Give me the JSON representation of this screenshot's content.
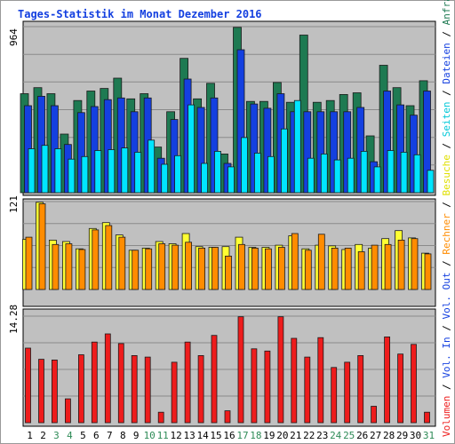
{
  "chart_data": [
    {
      "type": "bar",
      "panel": "top",
      "title": "Tages-Statistik im Monat Dezember 2016",
      "y_max_label": "964",
      "ylim": [
        0,
        964
      ],
      "categories": [
        "1",
        "2",
        "3",
        "4",
        "5",
        "6",
        "7",
        "8",
        "9",
        "10",
        "11",
        "12",
        "13",
        "14",
        "15",
        "16",
        "17",
        "18",
        "19",
        "20",
        "21",
        "22",
        "23",
        "24",
        "25",
        "26",
        "27",
        "28",
        "29",
        "30",
        "31"
      ],
      "category_colors": {
        "weekday": "#000000",
        "weekend": "#2e8b57"
      },
      "weekend_days": [
        "3",
        "4",
        "10",
        "11",
        "17",
        "18",
        "24",
        "25",
        "31"
      ],
      "series": [
        {
          "name": "Anfragen",
          "color": "#1e7a52",
          "values": [
            575,
            610,
            575,
            340,
            535,
            590,
            605,
            665,
            545,
            575,
            265,
            470,
            780,
            545,
            635,
            225,
            960,
            530,
            530,
            640,
            525,
            915,
            525,
            535,
            570,
            580,
            330,
            740,
            610,
            505,
            650
          ]
        },
        {
          "name": "Dateien",
          "color": "#1440e0",
          "values": [
            505,
            560,
            505,
            280,
            465,
            500,
            540,
            550,
            470,
            550,
            200,
            425,
            660,
            495,
            550,
            170,
            830,
            515,
            490,
            575,
            470,
            470,
            470,
            470,
            470,
            495,
            180,
            590,
            510,
            450,
            590
          ]
        },
        {
          "name": "Seiten",
          "color": "#00e5ff",
          "values": [
            255,
            275,
            255,
            195,
            210,
            245,
            250,
            260,
            235,
            305,
            165,
            215,
            510,
            170,
            240,
            150,
            320,
            230,
            210,
            370,
            535,
            200,
            225,
            190,
            200,
            240,
            150,
            245,
            235,
            220,
            130
          ]
        }
      ]
    },
    {
      "type": "bar",
      "panel": "middle",
      "y_max_label": "121",
      "ylim": [
        0,
        121
      ],
      "series": [
        {
          "name": "Besuche",
          "color": "#ffff33",
          "values": [
            69,
            120,
            68,
            66,
            56,
            84,
            92,
            75,
            54,
            57,
            66,
            63,
            77,
            59,
            58,
            59,
            72,
            58,
            58,
            61,
            74,
            56,
            61,
            60,
            55,
            62,
            57,
            70,
            81,
            71,
            50
          ]
        },
        {
          "name": "Rechner",
          "color": "#ff8c00",
          "values": [
            72,
            118,
            62,
            63,
            55,
            82,
            88,
            72,
            54,
            56,
            63,
            61,
            65,
            57,
            58,
            46,
            62,
            57,
            56,
            58,
            77,
            54,
            76,
            57,
            57,
            52,
            61,
            62,
            68,
            70,
            49
          ]
        }
      ]
    },
    {
      "type": "bar",
      "panel": "bottom",
      "y_max_label": "14.28",
      "ylim": [
        0,
        14.28
      ],
      "series": [
        {
          "name": "Volumen",
          "color": "#ee1c1c",
          "values": [
            10.0,
            8.5,
            8.4,
            3.2,
            9.1,
            10.8,
            11.9,
            10.6,
            9.0,
            8.8,
            1.4,
            8.1,
            10.8,
            9.0,
            11.7,
            1.6,
            14.2,
            9.9,
            9.6,
            14.2,
            11.3,
            8.8,
            11.4,
            7.4,
            8.1,
            9.0,
            2.2,
            11.5,
            9.2,
            10.5,
            1.4
          ]
        }
      ]
    }
  ],
  "right_legend": [
    {
      "text": "Volumen",
      "color": "#ee1c1c"
    },
    {
      "text": " / ",
      "color": "#000000"
    },
    {
      "text": "Vol. In",
      "color": "#1440e0"
    },
    {
      "text": " / ",
      "color": "#000000"
    },
    {
      "text": "Vol. Out",
      "color": "#1440e0"
    },
    {
      "text": " / ",
      "color": "#000000"
    },
    {
      "text": "Rechner",
      "color": "#ff8c00"
    },
    {
      "text": " / ",
      "color": "#000000"
    },
    {
      "text": "Besuche",
      "color": "#e0e000"
    },
    {
      "text": " / ",
      "color": "#000000"
    },
    {
      "text": "Seiten",
      "color": "#00c8d8"
    },
    {
      "text": " / ",
      "color": "#000000"
    },
    {
      "text": "Dateien",
      "color": "#1440e0"
    },
    {
      "text": " / ",
      "color": "#000000"
    },
    {
      "text": "Anfragen",
      "color": "#1e7a52"
    }
  ],
  "colors": {
    "panel_bg": "#c0c0c0",
    "frame": "#000000",
    "title": "#1440e0"
  }
}
